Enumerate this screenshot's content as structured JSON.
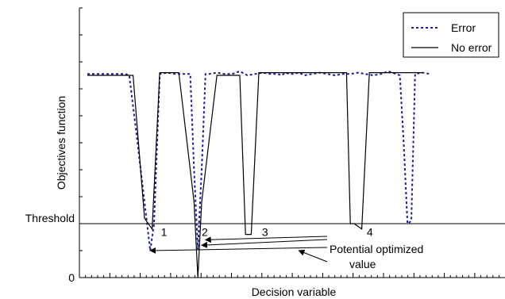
{
  "chart_data": {
    "type": "line",
    "title": "",
    "xlabel": "Decision variable",
    "ylabel": "Objectives function",
    "xlim": [
      0,
      100
    ],
    "ylim": [
      0,
      10
    ],
    "y_tick_labels": [
      {
        "text": "Threshold",
        "value": 2.0
      },
      {
        "text": "0",
        "value": 0
      }
    ],
    "threshold": 2.0,
    "legend": {
      "position": "top-right",
      "entries": [
        "Error",
        "No error"
      ]
    },
    "grid": false,
    "series": [
      {
        "name": "Error",
        "style": "dotted",
        "color": "#1a1aa6",
        "x": [
          0,
          10,
          11,
          13,
          15,
          16.5,
          17.5,
          19,
          21,
          23,
          25,
          27,
          28,
          29,
          30,
          31,
          32,
          34,
          36,
          38,
          40,
          42,
          44,
          46,
          48,
          50,
          51,
          52,
          53,
          54,
          55.5,
          57,
          59,
          61,
          63,
          65,
          67,
          69,
          71,
          73,
          75,
          77,
          79,
          81,
          82,
          83,
          84,
          85,
          86,
          88,
          90
        ],
        "y": [
          7.55,
          7.55,
          7.5,
          5.2,
          2.8,
          1.0,
          2.0,
          7.55,
          7.6,
          7.55,
          7.55,
          7.55,
          4.0,
          1.05,
          4.0,
          7.55,
          7.55,
          7.6,
          7.55,
          7.55,
          7.65,
          7.5,
          7.55,
          7.6,
          7.55,
          7.55,
          7.5,
          7.6,
          7.55,
          7.55,
          7.6,
          7.5,
          7.55,
          7.6,
          7.55,
          7.5,
          7.55,
          7.55,
          7.6,
          7.55,
          7.5,
          7.55,
          7.65,
          7.55,
          7.5,
          5.0,
          2.0,
          2.1,
          7.55,
          7.6,
          7.55
        ]
      },
      {
        "name": "No error",
        "style": "solid",
        "color": "#000000",
        "x": [
          0,
          10,
          12,
          15,
          17,
          19,
          24,
          28,
          29,
          30,
          34,
          38,
          40,
          41.5,
          43,
          45,
          64,
          68,
          69,
          70,
          72,
          74,
          88
        ],
        "y": [
          7.5,
          7.5,
          7.5,
          2.2,
          1.8,
          7.6,
          7.6,
          2.8,
          0,
          2.8,
          7.5,
          7.5,
          7.5,
          1.6,
          1.6,
          7.6,
          7.6,
          7.6,
          2.0,
          2.0,
          1.8,
          7.6,
          7.6
        ]
      }
    ],
    "annotations": {
      "numbers": [
        {
          "text": "1",
          "x": 19.3,
          "y": 1.9
        },
        {
          "text": "2",
          "x": 30.0,
          "y": 1.9
        },
        {
          "text": "3",
          "x": 45.8,
          "y": 1.9
        },
        {
          "text": "4",
          "x": 73.3,
          "y": 1.9
        }
      ],
      "label_line1": "Potential optimized",
      "label_line2": "value"
    }
  }
}
